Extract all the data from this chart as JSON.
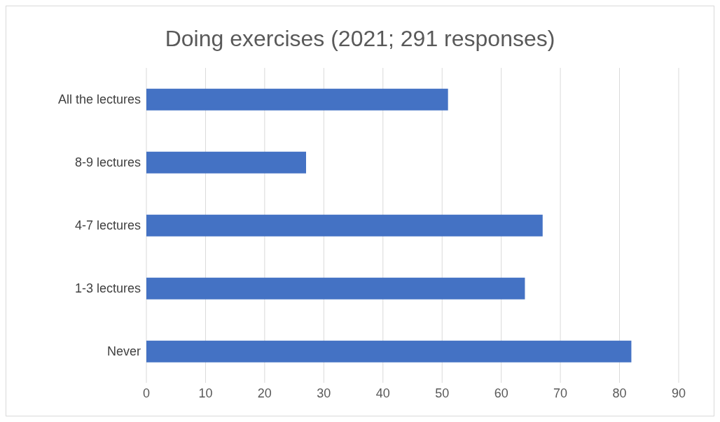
{
  "chart_data": {
    "type": "bar",
    "orientation": "horizontal",
    "title": "Doing exercises (2021; 291 responses)",
    "categories": [
      "All the lectures",
      "8-9 lectures",
      "4-7 lectures",
      "1-3 lectures",
      "Never"
    ],
    "values": [
      51,
      27,
      67,
      64,
      82
    ],
    "color": "#4472c4",
    "xlim": [
      0,
      90
    ],
    "xticks": [
      0,
      10,
      20,
      30,
      40,
      50,
      60,
      70,
      80,
      90
    ],
    "grid": "x"
  }
}
